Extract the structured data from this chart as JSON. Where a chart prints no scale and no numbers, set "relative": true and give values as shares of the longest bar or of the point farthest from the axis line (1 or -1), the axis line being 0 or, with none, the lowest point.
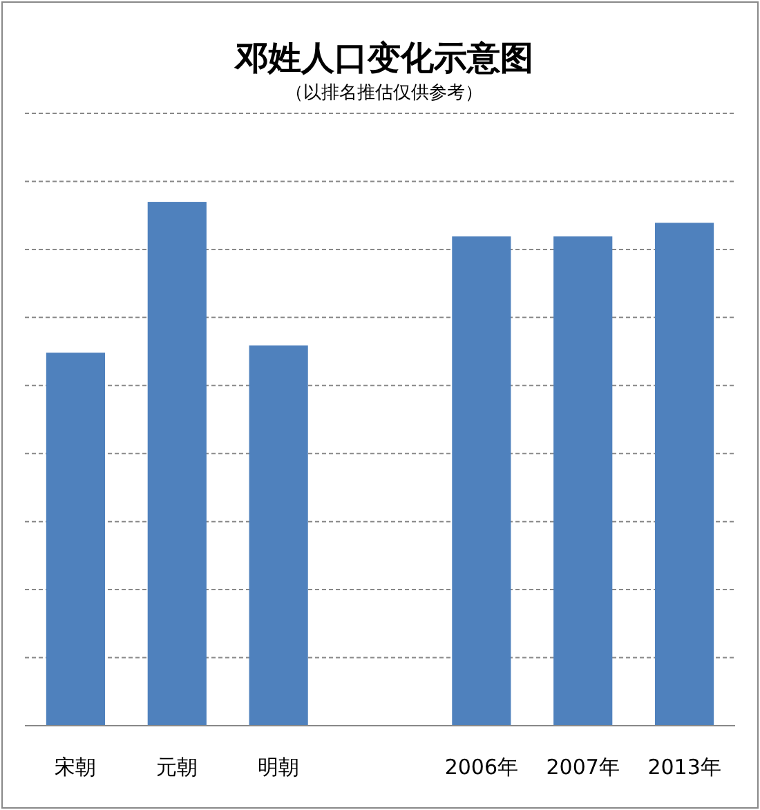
{
  "chart_data": {
    "type": "bar",
    "title": "邓姓人口变化示意图",
    "subtitle": "（以排名推估仅供参考）",
    "categories": [
      "宋朝",
      "元朝",
      "明朝",
      null,
      "2006年",
      "2007年",
      "2013年"
    ],
    "values": [
      0.712,
      1,
      0.726,
      null,
      0.934,
      0.934,
      0.96
    ],
    "color": "#4f81bd",
    "relative": true,
    "grid": "y"
  }
}
